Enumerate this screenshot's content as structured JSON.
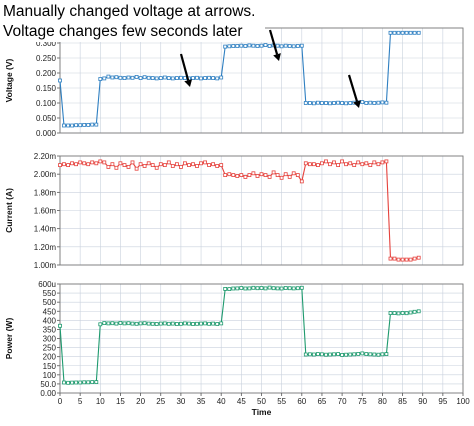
{
  "annotation": {
    "line1": "Manually changed voltage at arrows.",
    "line2": "Voltage changes few seconds later"
  },
  "colors": {
    "voltage": "#2e7fc1",
    "current": "#e5413c",
    "power": "#1e9a6e",
    "grid": "#c9d1dd",
    "frame": "#777777"
  },
  "chart_data": [
    {
      "type": "line",
      "ylabel": "Voltage (V)",
      "ylim": [
        0,
        0.35
      ],
      "yticks": [
        "0.000",
        "0.050",
        "0.100",
        "0.150",
        "0.200",
        "0.250",
        "0.300",
        "0.350"
      ],
      "xlim": [
        0,
        100
      ],
      "grid": true,
      "series": [
        {
          "color": "#2e7fc1",
          "x": [
            0,
            1,
            2,
            3,
            4,
            5,
            6,
            7,
            8,
            9,
            10,
            11,
            12,
            13,
            14,
            15,
            16,
            17,
            18,
            19,
            20,
            21,
            22,
            23,
            24,
            25,
            26,
            27,
            28,
            29,
            30,
            31,
            32,
            33,
            34,
            35,
            36,
            37,
            38,
            39,
            40,
            41,
            42,
            43,
            44,
            45,
            46,
            47,
            48,
            49,
            50,
            51,
            52,
            53,
            54,
            55,
            56,
            57,
            58,
            59,
            60,
            61,
            62,
            63,
            64,
            65,
            66,
            67,
            68,
            69,
            70,
            71,
            72,
            73,
            74,
            75,
            76,
            77,
            78,
            79,
            80,
            81,
            82,
            83,
            84,
            85,
            86,
            87,
            88,
            89
          ],
          "y": [
            0.175,
            0.025,
            0.025,
            0.025,
            0.026,
            0.026,
            0.027,
            0.027,
            0.028,
            0.028,
            0.18,
            0.182,
            0.188,
            0.185,
            0.186,
            0.184,
            0.183,
            0.185,
            0.184,
            0.187,
            0.183,
            0.186,
            0.184,
            0.183,
            0.182,
            0.183,
            0.185,
            0.183,
            0.182,
            0.183,
            0.184,
            0.183,
            0.182,
            0.183,
            0.184,
            0.182,
            0.183,
            0.184,
            0.183,
            0.182,
            0.185,
            0.288,
            0.289,
            0.29,
            0.29,
            0.291,
            0.29,
            0.292,
            0.291,
            0.29,
            0.291,
            0.293,
            0.29,
            0.292,
            0.291,
            0.289,
            0.291,
            0.29,
            0.289,
            0.29,
            0.291,
            0.1,
            0.1,
            0.099,
            0.101,
            0.1,
            0.1,
            0.099,
            0.1,
            0.101,
            0.1,
            0.099,
            0.1,
            0.101,
            0.102,
            0.103,
            0.1,
            0.101,
            0.1,
            0.101,
            0.102,
            0.101,
            0.334,
            0.334,
            0.334,
            0.334,
            0.334,
            0.334,
            0.334,
            0.334
          ]
        }
      ]
    },
    {
      "type": "line",
      "ylabel": "Current (A)",
      "ylim": [
        1.0,
        2.2
      ],
      "yticks": [
        "1.00m",
        "1.20m",
        "1.40m",
        "1.60m",
        "1.80m",
        "2.00m",
        "2.20m"
      ],
      "xlim": [
        0,
        100
      ],
      "grid": true,
      "series": [
        {
          "color": "#e5413c",
          "x": [
            0,
            1,
            2,
            3,
            4,
            5,
            6,
            7,
            8,
            9,
            10,
            11,
            12,
            13,
            14,
            15,
            16,
            17,
            18,
            19,
            20,
            21,
            22,
            23,
            24,
            25,
            26,
            27,
            28,
            29,
            30,
            31,
            32,
            33,
            34,
            35,
            36,
            37,
            38,
            39,
            40,
            41,
            42,
            43,
            44,
            45,
            46,
            47,
            48,
            49,
            50,
            51,
            52,
            53,
            54,
            55,
            56,
            57,
            58,
            59,
            60,
            61,
            62,
            63,
            64,
            65,
            66,
            67,
            68,
            69,
            70,
            71,
            72,
            73,
            74,
            75,
            76,
            77,
            78,
            79,
            80,
            81,
            82,
            83,
            84,
            85,
            86,
            87,
            88,
            89
          ],
          "y": [
            2.1,
            2.11,
            2.1,
            2.12,
            2.11,
            2.13,
            2.12,
            2.11,
            2.13,
            2.12,
            2.14,
            2.13,
            2.08,
            2.11,
            2.07,
            2.12,
            2.1,
            2.08,
            2.13,
            2.06,
            2.11,
            2.09,
            2.12,
            2.1,
            2.07,
            2.11,
            2.1,
            2.13,
            2.09,
            2.11,
            2.08,
            2.12,
            2.1,
            2.11,
            2.09,
            2.12,
            2.13,
            2.1,
            2.11,
            2.09,
            2.1,
            1.99,
            2.0,
            1.99,
            1.98,
            1.99,
            1.97,
            1.99,
            2.01,
            1.98,
            2.0,
            1.99,
            1.97,
            2.02,
            1.99,
            1.96,
            2.0,
            1.97,
            2.01,
            1.99,
            1.92,
            2.12,
            2.11,
            2.11,
            2.1,
            2.12,
            2.14,
            2.11,
            2.13,
            2.1,
            2.14,
            2.11,
            2.12,
            2.1,
            2.13,
            2.11,
            2.12,
            2.1,
            2.13,
            2.11,
            2.13,
            2.14,
            1.07,
            1.07,
            1.06,
            1.06,
            1.06,
            1.06,
            1.07,
            1.08
          ]
        }
      ]
    },
    {
      "type": "line",
      "ylabel": "Power (W)",
      "xlabel": "Time",
      "ylim": [
        0,
        600
      ],
      "yticks": [
        "0.00",
        "50.0",
        "100",
        "150",
        "200",
        "250",
        "300",
        "350",
        "400",
        "450",
        "500",
        "550",
        "600u"
      ],
      "xlim": [
        0,
        100
      ],
      "xticks": [
        "0",
        "5",
        "10",
        "15",
        "20",
        "25",
        "30",
        "35",
        "40",
        "45",
        "50",
        "55",
        "60",
        "65",
        "70",
        "75",
        "80",
        "85",
        "90",
        "95",
        "100"
      ],
      "grid": true,
      "series": [
        {
          "color": "#1e9a6e",
          "x": [
            0,
            1,
            2,
            3,
            4,
            5,
            6,
            7,
            8,
            9,
            10,
            11,
            12,
            13,
            14,
            15,
            16,
            17,
            18,
            19,
            20,
            21,
            22,
            23,
            24,
            25,
            26,
            27,
            28,
            29,
            30,
            31,
            32,
            33,
            34,
            35,
            36,
            37,
            38,
            39,
            40,
            41,
            42,
            43,
            44,
            45,
            46,
            47,
            48,
            49,
            50,
            51,
            52,
            53,
            54,
            55,
            56,
            57,
            58,
            59,
            60,
            61,
            62,
            63,
            64,
            65,
            66,
            67,
            68,
            69,
            70,
            71,
            72,
            73,
            74,
            75,
            76,
            77,
            78,
            79,
            80,
            81,
            82,
            83,
            84,
            85,
            86,
            87,
            88,
            89
          ],
          "y": [
            370,
            58,
            56,
            57,
            58,
            58,
            59,
            59,
            60,
            60,
            378,
            385,
            383,
            384,
            382,
            386,
            383,
            384,
            382,
            381,
            383,
            384,
            382,
            381,
            380,
            382,
            383,
            381,
            382,
            380,
            381,
            383,
            382,
            380,
            381,
            382,
            383,
            381,
            382,
            380,
            383,
            573,
            572,
            575,
            576,
            578,
            575,
            576,
            579,
            577,
            578,
            576,
            580,
            577,
            576,
            575,
            578,
            577,
            576,
            577,
            579,
            212,
            213,
            212,
            214,
            213,
            211,
            212,
            213,
            214,
            210,
            211,
            212,
            213,
            215,
            218,
            214,
            213,
            212,
            211,
            213,
            214,
            440,
            440,
            438,
            441,
            439,
            443,
            447,
            450
          ]
        }
      ]
    }
  ]
}
